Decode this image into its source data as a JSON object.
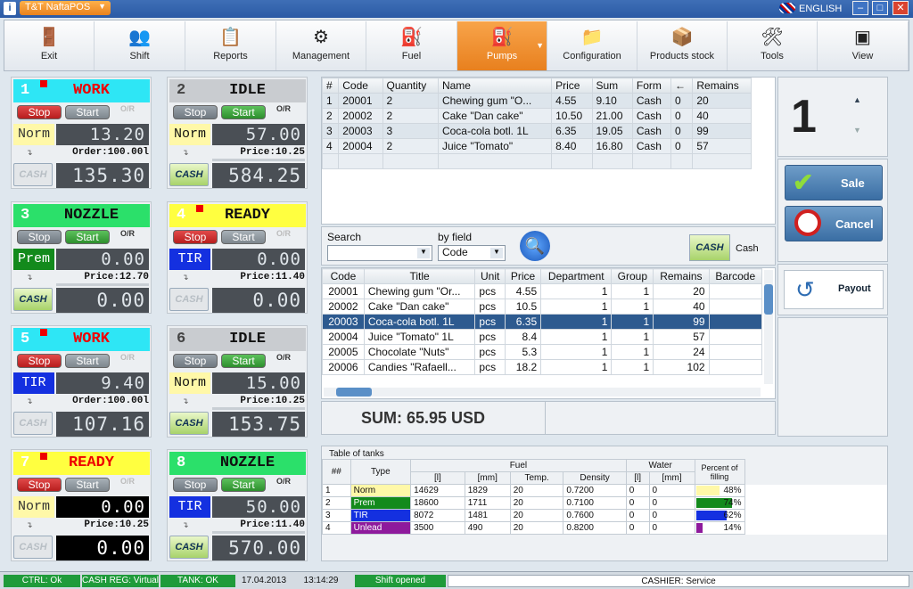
{
  "window": {
    "title": "T&T NaftaPOS",
    "lang": "ENGLISH",
    "logo": "i",
    "min": "–",
    "max": "□",
    "close": "✕"
  },
  "toolbar": [
    {
      "id": "exit",
      "label": "Exit",
      "icon": "exit-door-icon",
      "glyph": "🚪"
    },
    {
      "id": "shift",
      "label": "Shift",
      "icon": "users-icon",
      "glyph": "👥"
    },
    {
      "id": "reports",
      "label": "Reports",
      "icon": "report-icon",
      "glyph": "📋"
    },
    {
      "id": "management",
      "label": "Management",
      "icon": "gears-icon",
      "glyph": "⚙"
    },
    {
      "id": "fuel",
      "label": "Fuel",
      "icon": "fuel-hose-icon",
      "glyph": "⛽"
    },
    {
      "id": "pumps",
      "label": "Pumps",
      "icon": "gas-pump-icon",
      "glyph": "⛽"
    },
    {
      "id": "configuration",
      "label": "Configuration",
      "icon": "folder-icon",
      "glyph": "📁"
    },
    {
      "id": "products",
      "label": "Products stock",
      "icon": "boxes-icon",
      "glyph": "📦"
    },
    {
      "id": "tools",
      "label": "Tools",
      "icon": "tools-icon",
      "glyph": "🛠"
    },
    {
      "id": "view",
      "label": "View",
      "icon": "window-icon",
      "glyph": "▣"
    }
  ],
  "pumps": [
    {
      "n": "1",
      "state": "WORK",
      "hdr": "#2ee6f5",
      "scol": "#e00",
      "flag": true,
      "stop": "Stop",
      "start": "Start",
      "fuel": "Norm",
      "fuelbg": "#fff8a8",
      "fuelfg": "#333",
      "d1": "13.20",
      "info": "Order:100.00l",
      "d2": "135.30",
      "cash": "CASH",
      "active": false,
      "bar": false,
      "black": false
    },
    {
      "n": "2",
      "state": "IDLE",
      "hdr": "#c9ccd0",
      "scol": "#111",
      "flag": false,
      "stop": "Stop",
      "start": "Start",
      "fuel": "Norm",
      "fuelbg": "#fff8a8",
      "fuelfg": "#111",
      "d1": "57.00",
      "info": "Price:10.25",
      "d2": "584.25",
      "cash": "CASH",
      "active": true,
      "bar": true,
      "black": false
    },
    {
      "n": "3",
      "state": "NOZZLE",
      "hdr": "#2be06a",
      "scol": "#111",
      "flag": false,
      "stop": "Stop",
      "start": "Start",
      "fuel": "Prem",
      "fuelbg": "#138a1c",
      "fuelfg": "#fff",
      "d1": "0.00",
      "info": "Price:12.70",
      "d2": "0.00",
      "cash": "CASH",
      "active": true,
      "bar": true,
      "black": false
    },
    {
      "n": "4",
      "state": "READY",
      "hdr": "#ffff40",
      "scol": "#111",
      "flag": true,
      "stop": "Stop",
      "start": "Start",
      "fuel": "TIR",
      "fuelbg": "#1430e0",
      "fuelfg": "#fff",
      "d1": "0.00",
      "info": "Price:11.40",
      "d2": "0.00",
      "cash": "CASH",
      "active": false,
      "bar": false,
      "black": false
    },
    {
      "n": "5",
      "state": "WORK",
      "hdr": "#2ee6f5",
      "scol": "#e00",
      "flag": true,
      "stop": "Stop",
      "start": "Start",
      "fuel": "TIR",
      "fuelbg": "#1430e0",
      "fuelfg": "#fff",
      "d1": "9.40",
      "info": "Order:100.00l",
      "d2": "107.16",
      "cash": "CASH",
      "active": false,
      "bar": false,
      "black": false
    },
    {
      "n": "6",
      "state": "IDLE",
      "hdr": "#c9ccd0",
      "scol": "#111",
      "flag": false,
      "stop": "Stop",
      "start": "Start",
      "fuel": "Norm",
      "fuelbg": "#fff8a8",
      "fuelfg": "#111",
      "d1": "15.00",
      "info": "Price:10.25",
      "d2": "153.75",
      "cash": "CASH",
      "active": true,
      "bar": true,
      "black": false
    },
    {
      "n": "7",
      "state": "READY",
      "hdr": "#ffff40",
      "scol": "#e00",
      "flag": true,
      "stop": "Stop",
      "start": "Start",
      "fuel": "Norm",
      "fuelbg": "#fff8a8",
      "fuelfg": "#333",
      "d1": "0.00",
      "info": "Price:10.25",
      "d2": "0.00",
      "cash": "CASH",
      "active": false,
      "bar": false,
      "black": true
    },
    {
      "n": "8",
      "state": "NOZZLE",
      "hdr": "#2be06a",
      "scol": "#111",
      "flag": false,
      "stop": "Stop",
      "start": "Start",
      "fuel": "TIR",
      "fuelbg": "#1430e0",
      "fuelfg": "#fff",
      "d1": "50.00",
      "info": "Price:11.40",
      "d2": "570.00",
      "cash": "CASH",
      "active": true,
      "bar": true,
      "black": false
    }
  ],
  "cart": {
    "headers": [
      "#",
      "Code",
      "Quantity",
      "Name",
      "Price",
      "Sum",
      "Form",
      "←",
      "Remains"
    ],
    "rows": [
      [
        "1",
        "20001",
        "2",
        "Chewing gum \"O...",
        "4.55",
        "9.10",
        "Cash",
        "0",
        "20"
      ],
      [
        "2",
        "20002",
        "2",
        "Cake \"Dan cake\"",
        "10.50",
        "21.00",
        "Cash",
        "0",
        "40"
      ],
      [
        "3",
        "20003",
        "3",
        "Coca-cola botl. 1L",
        "6.35",
        "19.05",
        "Cash",
        "0",
        "99"
      ],
      [
        "4",
        "20004",
        "2",
        "Juice \"Tomato\"",
        "8.40",
        "16.80",
        "Cash",
        "0",
        "57"
      ]
    ]
  },
  "selected_pump": "1",
  "up": "▲",
  "down": "▼",
  "sale": "Sale",
  "cancel": "Cancel",
  "payout": "Payout",
  "search": {
    "label": "Search",
    "by": "by field",
    "field": "Code",
    "cashbtn": "CASH",
    "cashlabel": "Cash"
  },
  "products": {
    "headers": [
      "Code",
      "Title",
      "Unit",
      "Price",
      "Department",
      "Group",
      "Remains",
      "Barcode"
    ],
    "rows": [
      [
        "20001",
        "Chewing gum \"Or...",
        "pcs",
        "4.55",
        "1",
        "1",
        "20",
        ""
      ],
      [
        "20002",
        "Cake \"Dan cake\"",
        "pcs",
        "10.5",
        "1",
        "1",
        "40",
        ""
      ],
      [
        "20003",
        "Coca-cola botl. 1L",
        "pcs",
        "6.35",
        "1",
        "1",
        "99",
        ""
      ],
      [
        "20004",
        "Juice \"Tomato\" 1L",
        "pcs",
        "8.4",
        "1",
        "1",
        "57",
        ""
      ],
      [
        "20005",
        "Chocolate \"Nuts\"",
        "pcs",
        "5.3",
        "1",
        "1",
        "24",
        ""
      ],
      [
        "20006",
        "Candies \"Rafaell...",
        "pcs",
        "18.2",
        "1",
        "1",
        "102",
        ""
      ]
    ],
    "selected": 2
  },
  "sum": "SUM: 65.95 USD",
  "tanks": {
    "title": "Table of tanks",
    "h_num": "##",
    "h_type": "Type",
    "h_fuel": "Fuel",
    "h_water": "Water",
    "h_pct": "Percent of filling",
    "sub": [
      "[l]",
      "[mm]",
      "Temp.",
      "Density",
      "[l]",
      "[mm]"
    ],
    "rows": [
      {
        "n": "1",
        "type": "Norm",
        "bg": "#fff8a8",
        "fg": "#111",
        "l": "14629",
        "mm": "1829",
        "t": "20",
        "d": "0.7200",
        "wl": "0",
        "wmm": "0",
        "pct": "48%",
        "p": 48,
        "pc": "#fff8a8"
      },
      {
        "n": "2",
        "type": "Prem",
        "bg": "#138a1c",
        "fg": "#fff",
        "l": "18600",
        "mm": "1711",
        "t": "20",
        "d": "0.7100",
        "wl": "0",
        "wmm": "0",
        "pct": "74%",
        "p": 74,
        "pc": "#138a1c"
      },
      {
        "n": "3",
        "type": "TIR",
        "bg": "#1430e0",
        "fg": "#fff",
        "l": "8072",
        "mm": "1481",
        "t": "20",
        "d": "0.7600",
        "wl": "0",
        "wmm": "0",
        "pct": "62%",
        "p": 62,
        "pc": "#1430e0"
      },
      {
        "n": "4",
        "type": "Unlead",
        "bg": "#8e1a9c",
        "fg": "#fff",
        "l": "3500",
        "mm": "490",
        "t": "20",
        "d": "0.8200",
        "wl": "0",
        "wmm": "0",
        "pct": "14%",
        "p": 14,
        "pc": "#8e1a9c"
      }
    ]
  },
  "status": {
    "ctrl": "CTRL: Ok",
    "cashreg": "CASH REG: Virtual",
    "tank": "TANK: OK",
    "date": "17.04.2013",
    "time": "13:14:29",
    "shift": "Shift opened",
    "cashier": "CASHIER: Service"
  }
}
